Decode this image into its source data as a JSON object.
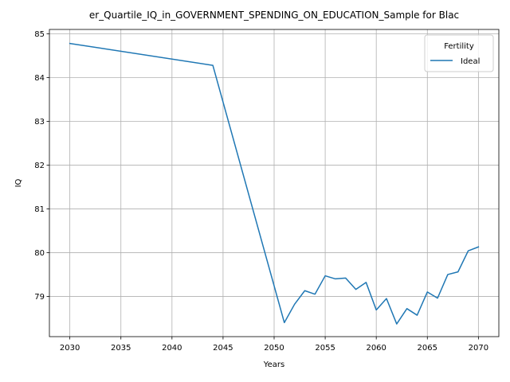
{
  "chart_data": {
    "type": "line",
    "title": "er_Quartile_IQ_in_GOVERNMENT_SPENDING_ON_EDUCATION_Sample for Blac",
    "xlabel": "Years",
    "ylabel": "IQ",
    "xlim": [
      2028,
      2072
    ],
    "ylim": [
      78.08,
      85.1
    ],
    "xticks": [
      2030,
      2035,
      2040,
      2045,
      2050,
      2055,
      2060,
      2065,
      2070
    ],
    "yticks": [
      79,
      80,
      81,
      82,
      83,
      84,
      85
    ],
    "grid": true,
    "legend": {
      "title": "Fertility",
      "placement": "top-right"
    },
    "series": [
      {
        "name": "Ideal",
        "color": "#1f77b4",
        "x": [
          2030,
          2044,
          2051,
          2052,
          2053,
          2054,
          2055,
          2056,
          2057,
          2058,
          2059,
          2060,
          2061,
          2062,
          2063,
          2064,
          2065,
          2066,
          2067,
          2068,
          2069,
          2070
        ],
        "y": [
          84.78,
          84.28,
          78.4,
          78.82,
          79.13,
          79.05,
          79.47,
          79.4,
          79.42,
          79.16,
          79.32,
          78.69,
          78.95,
          78.37,
          78.72,
          78.57,
          79.1,
          78.96,
          79.5,
          79.56,
          80.04,
          80.13
        ]
      }
    ]
  }
}
